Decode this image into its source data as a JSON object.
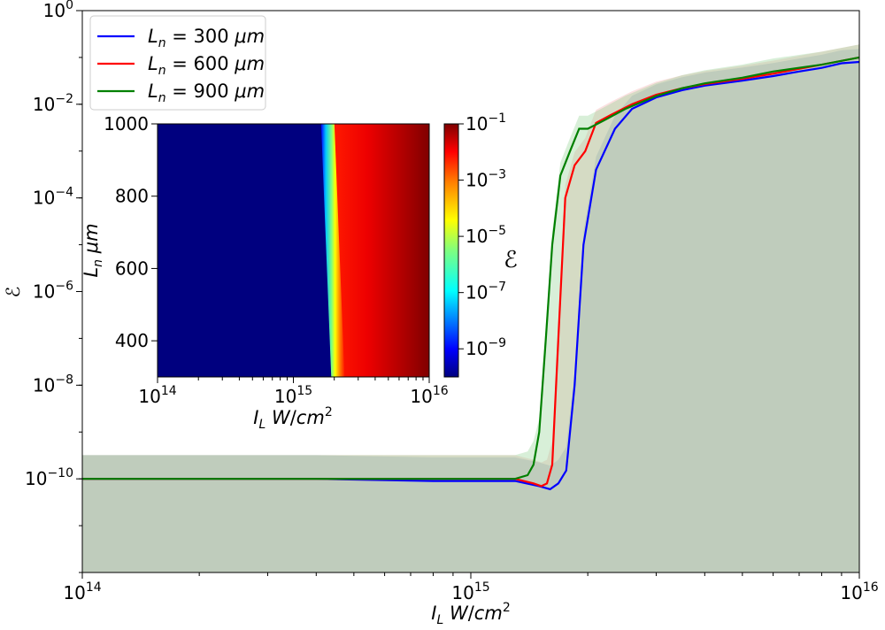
{
  "chart_data": [
    {
      "type": "line",
      "x_scale": "log",
      "y_scale": "log",
      "xlim": [
        100000000000000.0,
        1e+16
      ],
      "ylim": [
        1e-12,
        1
      ],
      "xlabel": "I_L W/cm^2",
      "ylabel": "ℰ",
      "x_ticks": [
        {
          "value": 100000000000000.0,
          "base": "10",
          "exp": "14"
        },
        {
          "value": 1000000000000000.0,
          "base": "10",
          "exp": "15"
        },
        {
          "value": 1e+16,
          "base": "10",
          "exp": "16"
        }
      ],
      "y_ticks": [
        {
          "value": 1e-10,
          "base": "10",
          "exp": "−10"
        },
        {
          "value": 1e-08,
          "base": "10",
          "exp": "−8"
        },
        {
          "value": 1e-06,
          "base": "10",
          "exp": "−6"
        },
        {
          "value": 0.0001,
          "base": "10",
          "exp": "−4"
        },
        {
          "value": 0.01,
          "base": "10",
          "exp": "−2"
        },
        {
          "value": 1,
          "base": "10",
          "exp": "0"
        }
      ],
      "legend": {
        "placement": "top-left"
      },
      "series": [
        {
          "name": "L_n = 300 μm",
          "color": "#0000ff",
          "band_color": "#6a9cc8",
          "x": [
            100000000000000.0,
            200000000000000.0,
            400000000000000.0,
            800000000000000.0,
            1300000000000000.0,
            1500000000000000.0,
            1600000000000000.0,
            1680000000000000.0,
            1760000000000000.0,
            1850000000000000.0,
            1950000000000000.0,
            2100000000000000.0,
            2350000000000000.0,
            2600000000000000.0,
            3000000000000000.0,
            3500000000000000.0,
            4000000000000000.0,
            5000000000000000.0,
            6000000000000000.0,
            7000000000000000.0,
            8000000000000000.0,
            9000000000000000.0,
            1e+16
          ],
          "y": [
            1e-10,
            1e-10,
            1e-10,
            9e-11,
            9e-11,
            7e-11,
            6e-11,
            8e-11,
            1.5e-10,
            1e-08,
            1e-05,
            0.0004,
            0.003,
            0.008,
            0.014,
            0.02,
            0.025,
            0.032,
            0.04,
            0.05,
            0.06,
            0.075,
            0.08
          ]
        },
        {
          "name": "L_n = 600 μm",
          "color": "#ff0000",
          "band_color": "#f4a8a8",
          "x": [
            100000000000000.0,
            200000000000000.0,
            400000000000000.0,
            800000000000000.0,
            1300000000000000.0,
            1450000000000000.0,
            1520000000000000.0,
            1570000000000000.0,
            1620000000000000.0,
            1680000000000000.0,
            1750000000000000.0,
            1850000000000000.0,
            1970000000000000.0,
            2100000000000000.0,
            2300000000000000.0,
            2600000000000000.0,
            3000000000000000.0,
            3500000000000000.0,
            4000000000000000.0,
            5000000000000000.0,
            6000000000000000.0,
            8000000000000000.0,
            1e+16
          ],
          "y": [
            1e-10,
            1e-10,
            1e-10,
            1e-10,
            1e-10,
            8e-11,
            7e-11,
            8e-11,
            2e-10,
            1e-07,
            0.0001,
            0.0005,
            0.001,
            0.004,
            0.006,
            0.01,
            0.016,
            0.022,
            0.027,
            0.035,
            0.045,
            0.07,
            0.1
          ]
        },
        {
          "name": "L_n = 900 μm",
          "color": "#008000",
          "band_color": "#8fd08f",
          "x": [
            100000000000000.0,
            200000000000000.0,
            400000000000000.0,
            800000000000000.0,
            1300000000000000.0,
            1400000000000000.0,
            1450000000000000.0,
            1500000000000000.0,
            1560000000000000.0,
            1620000000000000.0,
            1700000000000000.0,
            1800000000000000.0,
            1900000000000000.0,
            2000000000000000.0,
            2200000000000000.0,
            2500000000000000.0,
            3000000000000000.0,
            3500000000000000.0,
            4000000000000000.0,
            5000000000000000.0,
            6000000000000000.0,
            8000000000000000.0,
            1e+16
          ],
          "y": [
            1e-10,
            1e-10,
            1e-10,
            1e-10,
            1e-10,
            1.2e-10,
            2e-10,
            1e-09,
            1e-07,
            1e-05,
            0.0003,
            0.001,
            0.003,
            0.003,
            0.0045,
            0.008,
            0.015,
            0.022,
            0.028,
            0.037,
            0.05,
            0.07,
            0.1
          ]
        }
      ]
    },
    {
      "type": "heatmap",
      "x_scale": "log",
      "xlim": [
        100000000000000.0,
        1e+16
      ],
      "ylim": [
        300,
        1000
      ],
      "xlabel": "I_L W/cm^2",
      "ylabel": "L_n μm",
      "x_ticks": [
        {
          "value": 100000000000000.0,
          "base": "10",
          "exp": "14"
        },
        {
          "value": 1000000000000000.0,
          "base": "10",
          "exp": "15"
        },
        {
          "value": 1e+16,
          "base": "10",
          "exp": "16"
        }
      ],
      "y_ticks": [
        "400",
        "600",
        "800",
        "1000"
      ],
      "threshold_at_Ln_1000": 1600000000000000.0,
      "threshold_at_Ln_300": 1900000000000000.0,
      "colorbar": {
        "label": "ℰ",
        "scale": "log",
        "range": [
          1e-10,
          0.1
        ],
        "colormap": "jet",
        "ticks": [
          {
            "value": 0.1,
            "base": "10",
            "exp": "−1"
          },
          {
            "value": 0.001,
            "base": "10",
            "exp": "−3"
          },
          {
            "value": 1e-05,
            "base": "10",
            "exp": "−5"
          },
          {
            "value": 1e-07,
            "base": "10",
            "exp": "−7"
          },
          {
            "value": 1e-09,
            "base": "10",
            "exp": "−9"
          }
        ]
      }
    }
  ]
}
